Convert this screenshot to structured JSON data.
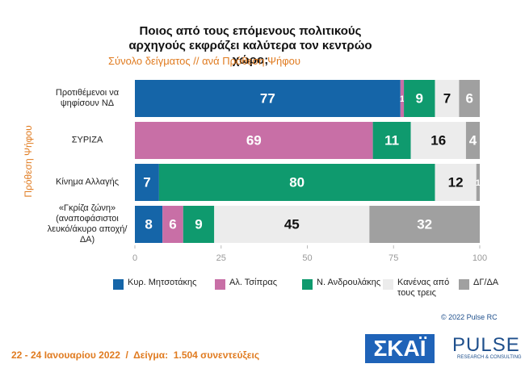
{
  "chart_data": {
    "type": "stacked_bar_horizontal",
    "title": "Ποιος από τους επόμενους πολιτικούς αρχηγούς εκφράζει καλύτερα τον κεντρώο χώρο;",
    "subtitle": "Σύνολο δείγματος // ανά Πρόθεση Ψήφου",
    "y_label": "Πρόθεση Ψήφου",
    "categories": [
      "Προτιθέμενοι να ψηφίσουν ΝΔ",
      "ΣΥΡΙΖΑ",
      "Κίνημα Αλλαγής",
      "«Γκρίζα ζώνη» (αναποφάσιστοι λευκό/άκυρο αποχή/ΔΑ)"
    ],
    "series": [
      {
        "name": "Κυρ. Μητσοτάκης",
        "color": "#1565a8",
        "label_color": "#ffffff",
        "values": [
          77,
          null,
          7,
          8
        ]
      },
      {
        "name": "Αλ. Τσίπρας",
        "color": "#c86fa6",
        "label_color": "#ffffff",
        "values": [
          1,
          69,
          null,
          6
        ]
      },
      {
        "name": "Ν. Ανδρουλάκης",
        "color": "#0f9a6e",
        "label_color": "#ffffff",
        "values": [
          9,
          11,
          80,
          9
        ]
      },
      {
        "name": "Κανένας από τους τρεις",
        "color": "#ececec",
        "label_color": "#111111",
        "values": [
          7,
          16,
          12,
          45
        ]
      },
      {
        "name": "ΔΓ/ΔΑ",
        "color": "#a0a0a0",
        "label_color": "#ffffff",
        "values": [
          6,
          4,
          1,
          32
        ]
      }
    ],
    "xlim": [
      0,
      100
    ],
    "xticks": [
      0,
      25,
      50,
      75,
      100
    ],
    "copyright": "© 2022 Pulse RC",
    "footer": "22 - 24 Ιανουαρίου 2022  /  Δείγμα:  1.504 συνεντεύξεις",
    "logos": [
      "ΣΚΑΪ",
      "PULSE",
      "RESEARCH & CONSULTING"
    ]
  }
}
